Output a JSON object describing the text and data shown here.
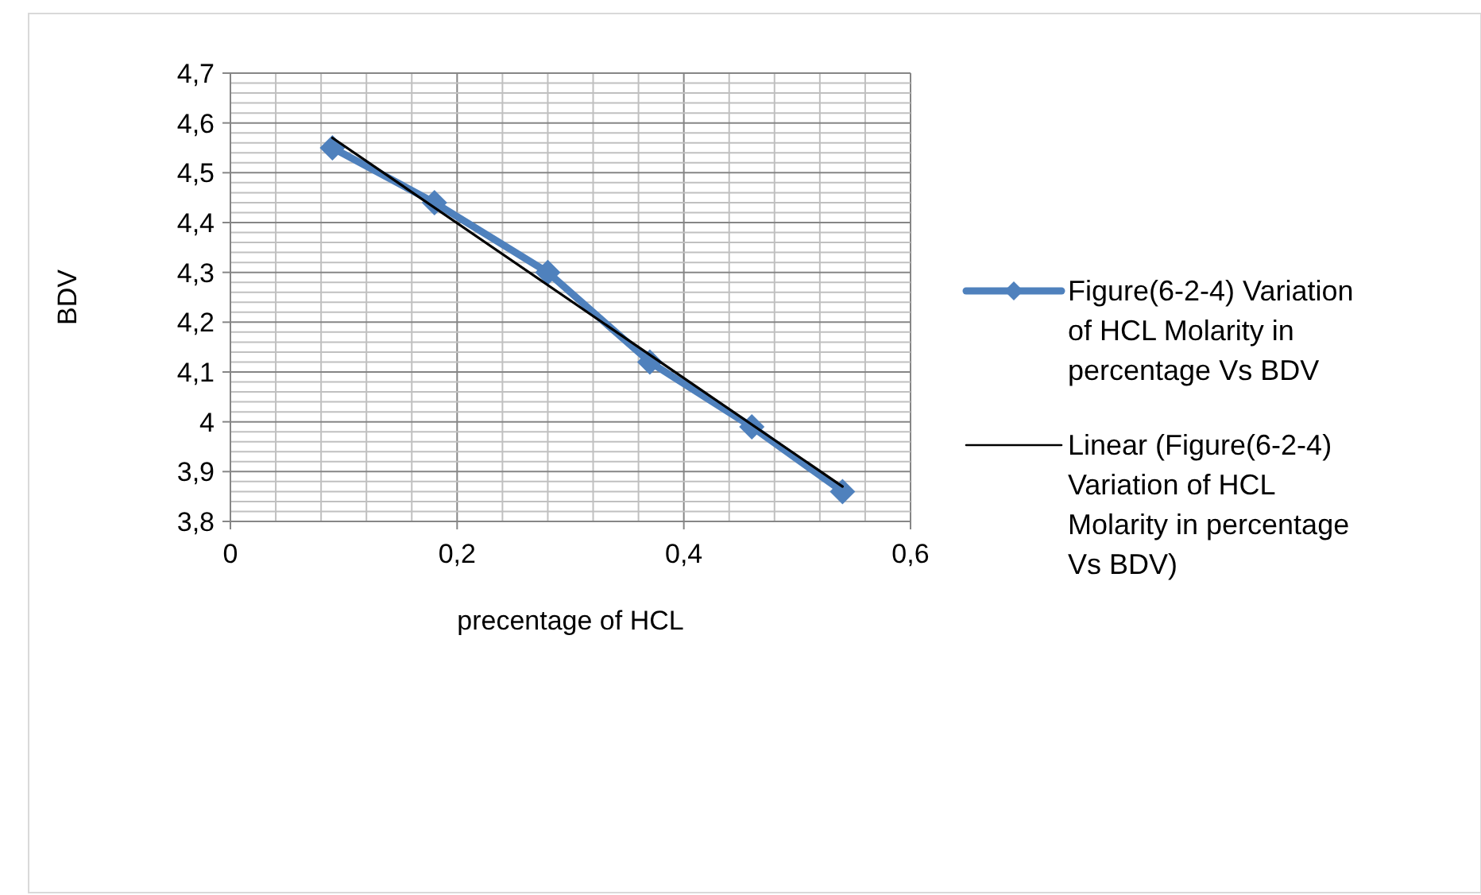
{
  "chart_data": {
    "type": "line",
    "xlabel": "precentage of HCL",
    "ylabel": "BDV",
    "xlim": [
      0,
      0.6
    ],
    "ylim": [
      3.8,
      4.7
    ],
    "xticks": [
      0,
      {
        "value": 0.04,
        "label": null
      },
      {
        "value": 0.08,
        "label": null
      },
      {
        "value": 0.12,
        "label": null
      },
      {
        "value": 0.16,
        "label": null
      },
      {
        "value": 0.2,
        "label": "0,2"
      },
      {
        "value": 0.24,
        "label": null
      },
      {
        "value": 0.28,
        "label": null
      },
      {
        "value": 0.32,
        "label": null
      },
      {
        "value": 0.36,
        "label": null
      },
      {
        "value": 0.4,
        "label": "0,4"
      },
      {
        "value": 0.44,
        "label": null
      },
      {
        "value": 0.48,
        "label": null
      },
      {
        "value": 0.52,
        "label": null
      },
      {
        "value": 0.56,
        "label": null
      },
      {
        "value": 0.6,
        "label": "0,6"
      }
    ],
    "yticks": [
      {
        "value": 3.8,
        "label": "3,8"
      },
      {
        "value": 3.82,
        "label": null
      },
      {
        "value": 3.84,
        "label": null
      },
      {
        "value": 3.86,
        "label": null
      },
      {
        "value": 3.88,
        "label": null
      },
      {
        "value": 3.9,
        "label": "3,9"
      },
      {
        "value": 3.92,
        "label": null
      },
      {
        "value": 3.94,
        "label": null
      },
      {
        "value": 3.96,
        "label": null
      },
      {
        "value": 3.98,
        "label": null
      },
      4,
      {
        "value": 4.02,
        "label": null
      },
      {
        "value": 4.04,
        "label": null
      },
      {
        "value": 4.06,
        "label": null
      },
      {
        "value": 4.08,
        "label": null
      },
      {
        "value": 4.1,
        "label": "4,1"
      },
      {
        "value": 4.12,
        "label": null
      },
      {
        "value": 4.14,
        "label": null
      },
      {
        "value": 4.16,
        "label": null
      },
      {
        "value": 4.18,
        "label": null
      },
      {
        "value": 4.2,
        "label": "4,2"
      },
      {
        "value": 4.22,
        "label": null
      },
      {
        "value": 4.24,
        "label": null
      },
      {
        "value": 4.26,
        "label": null
      },
      {
        "value": 4.28,
        "label": null
      },
      {
        "value": 4.3,
        "label": "4,3"
      },
      {
        "value": 4.32,
        "label": null
      },
      {
        "value": 4.34,
        "label": null
      },
      {
        "value": 4.36,
        "label": null
      },
      {
        "value": 4.38,
        "label": null
      },
      {
        "value": 4.4,
        "label": "4,4"
      },
      {
        "value": 4.42,
        "label": null
      },
      {
        "value": 4.44,
        "label": null
      },
      {
        "value": 4.46,
        "label": null
      },
      {
        "value": 4.48,
        "label": null
      },
      {
        "value": 4.5,
        "label": "4,5"
      },
      {
        "value": 4.52,
        "label": null
      },
      {
        "value": 4.54,
        "label": null
      },
      {
        "value": 4.56,
        "label": null
      },
      {
        "value": 4.58,
        "label": null
      },
      {
        "value": 4.6,
        "label": "4,6"
      },
      {
        "value": 4.62,
        "label": null
      },
      {
        "value": 4.64,
        "label": null
      },
      {
        "value": 4.66,
        "label": null
      },
      {
        "value": 4.68,
        "label": null
      },
      {
        "value": 4.7,
        "label": "4,7"
      }
    ],
    "grid": true,
    "legend": "right",
    "series": [
      {
        "name": "Figure(6-2-4) Variation of HCL Molarity in percentage Vs BDV",
        "color": "#4f81bd",
        "marker": "diamond",
        "x": [
          0.09,
          0.18,
          0.28,
          0.37,
          0.46,
          0.54
        ],
        "values": [
          4.55,
          4.44,
          4.3,
          4.12,
          3.99,
          3.86
        ]
      },
      {
        "name": "Linear (Figure(6-2-4) Variation of HCL Molarity in percentage Vs BDV)",
        "color": "#000000",
        "marker": "none",
        "x": [
          0.09,
          0.54
        ],
        "values": [
          4.57,
          3.87
        ]
      }
    ]
  }
}
